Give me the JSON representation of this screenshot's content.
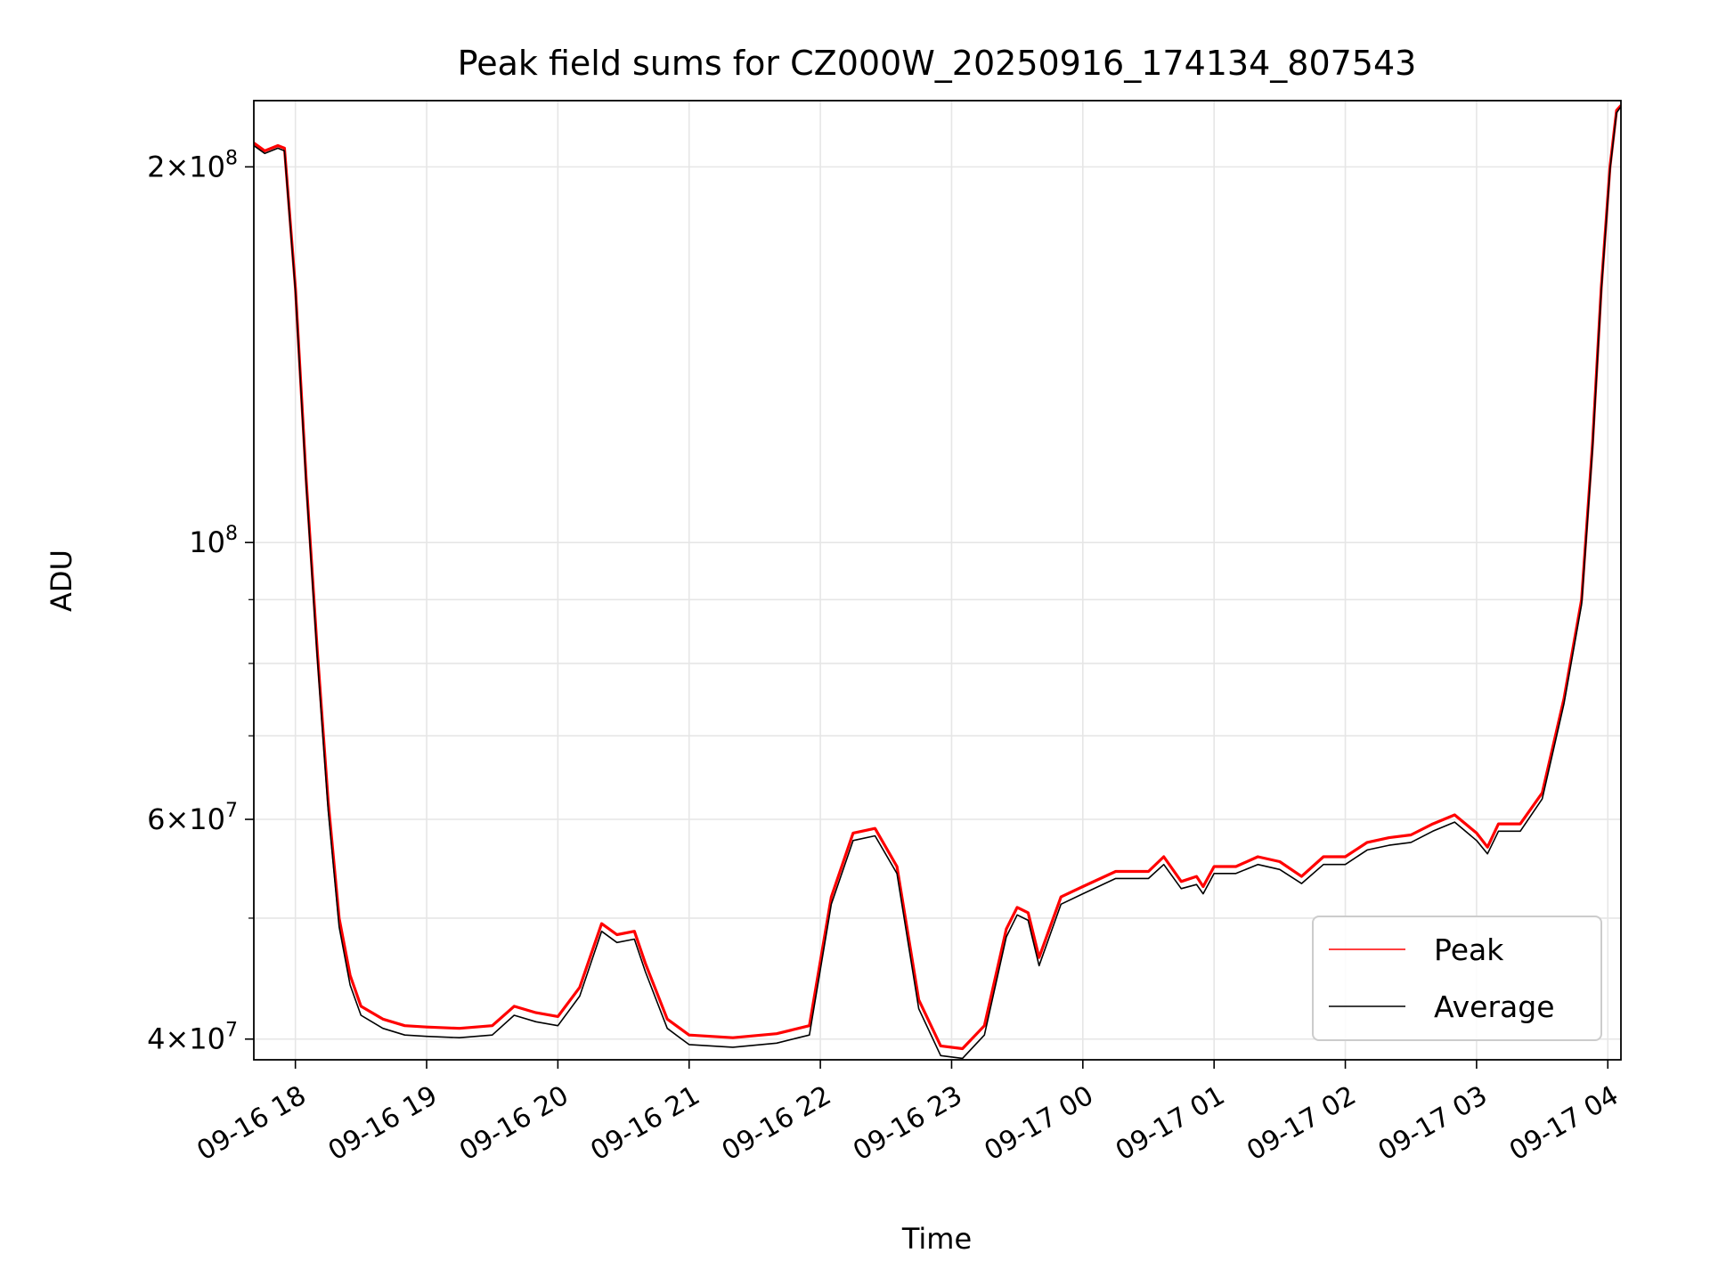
{
  "chart_data": {
    "type": "line",
    "title": "Peak field sums for CZ000W_20250916_174134_807543",
    "xlabel": "Time",
    "ylabel": "ADU",
    "y_scale": "log",
    "xlim": [
      "2025-09-16 17:41",
      "2025-09-17 04:06"
    ],
    "ylim": [
      38500000,
      226000000
    ],
    "x_ticks": [
      "09-16 18",
      "09-16 19",
      "09-16 20",
      "09-16 21",
      "09-16 22",
      "09-16 23",
      "09-17 00",
      "09-17 01",
      "09-17 02",
      "09-17 03",
      "09-17 04"
    ],
    "y_ticks": [
      {
        "value": 40000000,
        "base": "4",
        "exp": "7"
      },
      {
        "value": 60000000,
        "base": "6",
        "exp": "7"
      },
      {
        "value": 100000000,
        "base": "",
        "exp": "8"
      },
      {
        "value": 200000000,
        "base": "2",
        "exp": "8"
      }
    ],
    "y_minor_ticks": [
      50000000,
      70000000,
      80000000,
      90000000
    ],
    "grid": true,
    "legend_position": "lower right",
    "x": [
      "2025-09-16 17:41",
      "2025-09-16 17:46",
      "2025-09-16 17:52",
      "2025-09-16 17:55",
      "2025-09-16 18:00",
      "2025-09-16 18:05",
      "2025-09-16 18:10",
      "2025-09-16 18:15",
      "2025-09-16 18:20",
      "2025-09-16 18:25",
      "2025-09-16 18:30",
      "2025-09-16 18:40",
      "2025-09-16 18:50",
      "2025-09-16 19:00",
      "2025-09-16 19:15",
      "2025-09-16 19:30",
      "2025-09-16 19:40",
      "2025-09-16 19:50",
      "2025-09-16 20:00",
      "2025-09-16 20:10",
      "2025-09-16 20:20",
      "2025-09-16 20:27",
      "2025-09-16 20:35",
      "2025-09-16 20:40",
      "2025-09-16 20:50",
      "2025-09-16 21:00",
      "2025-09-16 21:20",
      "2025-09-16 21:40",
      "2025-09-16 21:50",
      "2025-09-16 21:55",
      "2025-09-16 22:05",
      "2025-09-16 22:15",
      "2025-09-16 22:25",
      "2025-09-16 22:35",
      "2025-09-16 22:45",
      "2025-09-16 22:55",
      "2025-09-16 23:05",
      "2025-09-16 23:15",
      "2025-09-16 23:25",
      "2025-09-16 23:30",
      "2025-09-16 23:35",
      "2025-09-16 23:40",
      "2025-09-16 23:50",
      "2025-09-17 00:00",
      "2025-09-17 00:15",
      "2025-09-17 00:30",
      "2025-09-17 00:37",
      "2025-09-17 00:45",
      "2025-09-17 00:52",
      "2025-09-17 00:55",
      "2025-09-17 01:00",
      "2025-09-17 01:10",
      "2025-09-17 01:20",
      "2025-09-17 01:30",
      "2025-09-17 01:40",
      "2025-09-17 01:50",
      "2025-09-17 02:00",
      "2025-09-17 02:10",
      "2025-09-17 02:20",
      "2025-09-17 02:30",
      "2025-09-17 02:40",
      "2025-09-17 02:50",
      "2025-09-17 03:00",
      "2025-09-17 03:05",
      "2025-09-17 03:10",
      "2025-09-17 03:20",
      "2025-09-17 03:30",
      "2025-09-17 03:40",
      "2025-09-17 03:48",
      "2025-09-17 03:53",
      "2025-09-17 03:57",
      "2025-09-17 04:01",
      "2025-09-17 04:04",
      "2025-09-17 04:06"
    ],
    "series": [
      {
        "name": "Peak",
        "color": "#ff0000",
        "values": [
          209000000,
          206000000,
          208000000,
          207000000,
          160000000,
          112000000,
          82000000,
          62000000,
          50000000,
          45000000,
          42500000,
          41500000,
          41000000,
          40900000,
          40800000,
          41000000,
          42500000,
          42000000,
          41700000,
          44000000,
          49500000,
          48500000,
          48800000,
          46000000,
          41500000,
          40300000,
          40100000,
          40400000,
          40800000,
          41000000,
          52000000,
          58500000,
          59000000,
          55000000,
          43000000,
          39500000,
          39300000,
          41000000,
          49000000,
          51000000,
          50500000,
          46500000,
          52000000,
          53000000,
          54500000,
          54500000,
          56000000,
          53500000,
          54000000,
          53000000,
          55000000,
          55000000,
          56000000,
          55500000,
          54000000,
          56000000,
          56000000,
          57500000,
          58000000,
          58300000,
          59500000,
          60500000,
          58500000,
          57000000,
          59500000,
          59500000,
          63000000,
          75000000,
          90000000,
          120000000,
          160000000,
          200000000,
          222000000,
          224000000
        ]
      },
      {
        "name": "Average",
        "color": "#000000",
        "values": [
          208000000,
          205000000,
          207000000,
          206000000,
          159000000,
          111000000,
          81000000,
          61000000,
          49200000,
          44200000,
          41800000,
          40800000,
          40300000,
          40200000,
          40100000,
          40300000,
          41800000,
          41300000,
          41000000,
          43300000,
          48800000,
          47800000,
          48100000,
          45300000,
          40800000,
          39600000,
          39400000,
          39700000,
          40100000,
          40300000,
          51300000,
          57700000,
          58200000,
          54300000,
          42300000,
          38800000,
          38600000,
          40300000,
          48300000,
          50300000,
          49800000,
          45800000,
          51300000,
          52300000,
          53800000,
          53800000,
          55200000,
          52800000,
          53200000,
          52300000,
          54300000,
          54300000,
          55200000,
          54700000,
          53300000,
          55200000,
          55200000,
          56700000,
          57200000,
          57500000,
          58700000,
          59700000,
          57700000,
          56300000,
          58700000,
          58700000,
          62300000,
          74300000,
          89200000,
          119000000,
          159000000,
          199000000,
          221000000,
          223500000
        ]
      }
    ]
  }
}
